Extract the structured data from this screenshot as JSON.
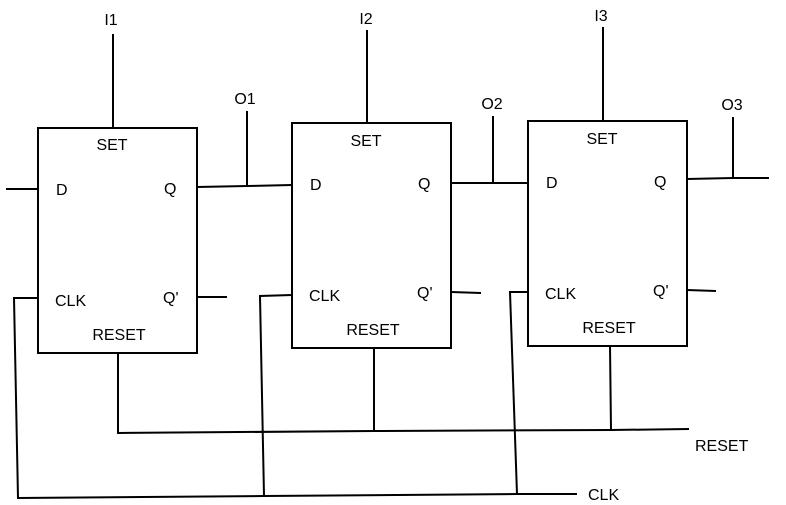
{
  "flip_flops": [
    {
      "input_label": "I1",
      "output_label": "O1",
      "pins": {
        "set": "SET",
        "d": "D",
        "q": "Q",
        "clk": "CLK",
        "q_bar": "Q'",
        "reset": "RESET"
      }
    },
    {
      "input_label": "I2",
      "output_label": "O2",
      "pins": {
        "set": "SET",
        "d": "D",
        "q": "Q",
        "clk": "CLK",
        "q_bar": "Q'",
        "reset": "RESET"
      }
    },
    {
      "input_label": "I3",
      "output_label": "O3",
      "pins": {
        "set": "SET",
        "d": "D",
        "q": "Q",
        "clk": "CLK",
        "q_bar": "Q'",
        "reset": "RESET"
      }
    }
  ],
  "buses": {
    "reset_label": "RESET",
    "clk_label": "CLK"
  }
}
